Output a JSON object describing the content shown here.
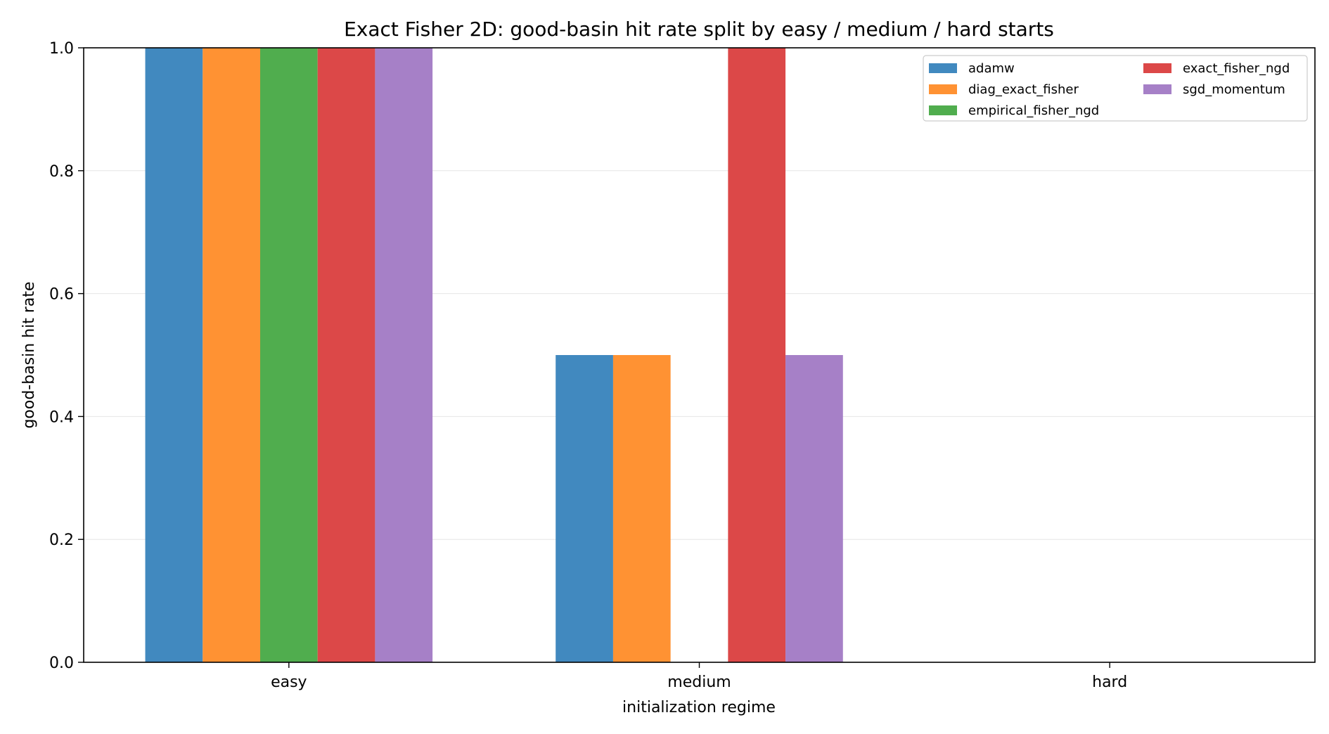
{
  "chart_data": {
    "type": "bar",
    "title": "Exact Fisher 2D: good-basin hit rate split by easy / medium / hard starts",
    "xlabel": "initialization regime",
    "ylabel": "good-basin hit rate",
    "categories": [
      "easy",
      "medium",
      "hard"
    ],
    "ylim": [
      0,
      1.0
    ],
    "yticks": [
      "0.0",
      "0.2",
      "0.4",
      "0.6",
      "0.8",
      "1.0"
    ],
    "grid": "y",
    "legend_position": "top-right",
    "series": [
      {
        "name": "adamw",
        "color": "#4189bf",
        "values": [
          1.0,
          0.5,
          0.0
        ]
      },
      {
        "name": "diag_exact_fisher",
        "color": "#ff9233",
        "values": [
          1.0,
          0.5,
          0.0
        ]
      },
      {
        "name": "empirical_fisher_ngd",
        "color": "#50ad4e",
        "values": [
          1.0,
          0.0,
          0.0
        ]
      },
      {
        "name": "exact_fisher_ngd",
        "color": "#dc4848",
        "values": [
          1.0,
          1.0,
          0.0
        ]
      },
      {
        "name": "sgd_momentum",
        "color": "#a680c7",
        "values": [
          1.0,
          0.5,
          0.0
        ]
      }
    ]
  }
}
